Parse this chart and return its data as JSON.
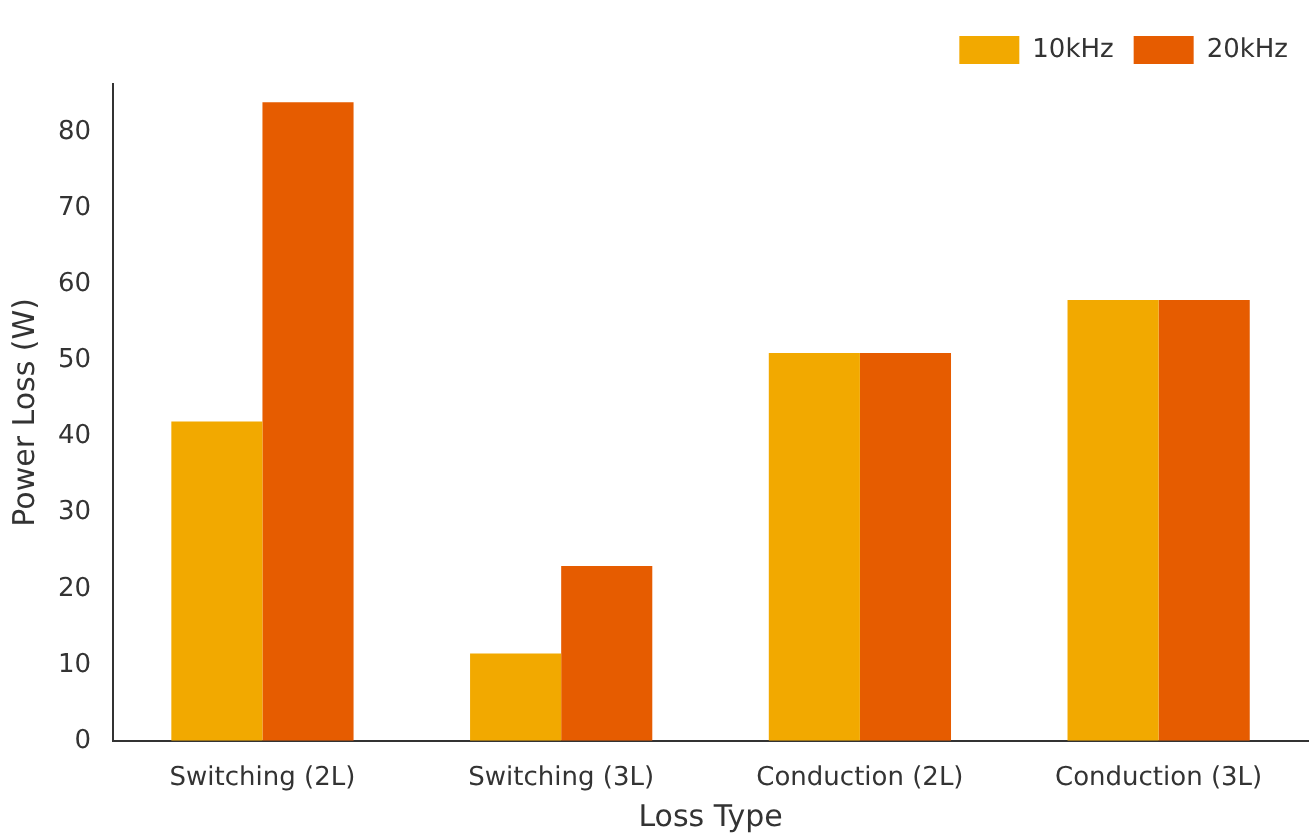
{
  "chart_data": {
    "type": "bar",
    "xlabel": "Loss Type",
    "ylabel": "Power Loss (W)",
    "categories": [
      "Switching (2L)",
      "Switching (3L)",
      "Conduction (2L)",
      "Conduction (3L)"
    ],
    "series": [
      {
        "name": "10kHz",
        "color": "#f2a900",
        "values": [
          42,
          11.5,
          51,
          58
        ]
      },
      {
        "name": "20kHz",
        "color": "#e65c00",
        "values": [
          84,
          23,
          51,
          58
        ]
      }
    ],
    "ylim": [
      0,
      86.4
    ],
    "yticks": [
      0,
      10,
      20,
      30,
      40,
      50,
      60,
      70,
      80
    ],
    "grid": false,
    "legend": "top right"
  }
}
